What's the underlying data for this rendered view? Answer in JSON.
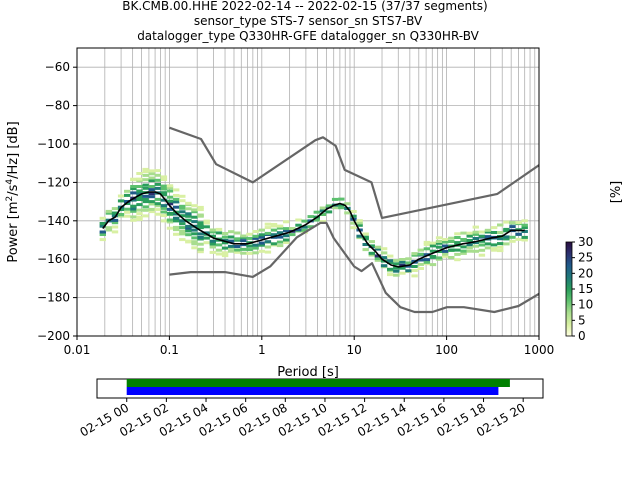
{
  "title_lines": [
    "BK.CMB.00.HHE   2022-02-14 -- 2022-02-15  (37/37 segments)",
    "sensor_type STS-7 sensor_sn STS7-BV",
    "datalogger_type Q330HR-GFE datalogger_sn Q330HR-BV"
  ],
  "chart_data": [
    {
      "type": "heatmap",
      "title": "BK.CMB.00.HHE   2022-02-14 -- 2022-02-15  (37/37 segments)",
      "xlabel": "Period [s]",
      "ylabel": "Power [m²/s⁴/Hz] [dB]",
      "xscale": "log",
      "xlim": [
        0.01,
        1000
      ],
      "ylim": [
        -200,
        -50
      ],
      "x_ticks": [
        "0.01",
        "0.1",
        "1",
        "10",
        "100",
        "1000"
      ],
      "y_ticks": [
        "−60",
        "−80",
        "−100",
        "−120",
        "−140",
        "−160",
        "−180",
        "−200"
      ],
      "grid": true,
      "colorbar": {
        "label": "[%]",
        "range": [
          0,
          30
        ],
        "ticks": [
          "0",
          "5",
          "10",
          "15",
          "20",
          "25",
          "30"
        ],
        "colors": [
          "#ffffe0",
          "#d9f0a3",
          "#a8dd8e",
          "#5cc06e",
          "#2a9d5c",
          "#1f7a78",
          "#205a8a",
          "#2c2f6e",
          "#2a0f3f"
        ]
      },
      "series": [
        {
          "name": "",
          "role": "mean",
          "color": "#000000",
          "x": [
            0.019,
            0.022,
            0.026,
            0.03,
            0.036,
            0.042,
            0.05,
            0.06,
            0.07,
            0.08,
            0.09,
            0.1,
            0.12,
            0.15,
            0.2,
            0.3,
            0.5,
            0.7,
            1,
            1.4,
            2,
            3,
            4,
            5,
            6,
            7,
            8,
            9,
            10,
            12,
            14,
            17,
            20,
            25,
            30,
            40,
            50,
            70,
            100,
            150,
            200,
            300,
            400,
            500,
            700
          ],
          "y": [
            -144,
            -140,
            -138,
            -133,
            -130,
            -128,
            -126,
            -125,
            -125,
            -126,
            -129,
            -132,
            -136,
            -140,
            -144,
            -149,
            -152,
            -152,
            -150,
            -148,
            -146,
            -142,
            -138,
            -134,
            -132,
            -131,
            -132,
            -135,
            -140,
            -147,
            -152,
            -156,
            -160,
            -163,
            -164,
            -163,
            -160,
            -157,
            -154,
            -152,
            -151,
            -149,
            -148,
            -145,
            -145
          ]
        },
        {
          "name": "",
          "role": "noise-model-high",
          "color": "#666666",
          "x": [
            0.1,
            0.22,
            0.32,
            0.8,
            3.8,
            4.6,
            6.3,
            7.9,
            15.4,
            20,
            354.8,
            1000
          ],
          "y": [
            -91.5,
            -97.4,
            -110.5,
            -120,
            -98,
            -96.5,
            -101,
            -113.5,
            -120,
            -138.5,
            -126,
            -111
          ]
        },
        {
          "name": "",
          "role": "noise-model-low",
          "color": "#666666",
          "x": [
            0.1,
            0.17,
            0.4,
            0.8,
            1.24,
            2.4,
            4.3,
            5,
            6,
            10,
            12,
            15.6,
            21.9,
            31.6,
            45,
            70,
            101,
            154,
            328,
            600,
            1000
          ],
          "y": [
            -168,
            -166.7,
            -166.7,
            -169.2,
            -163.7,
            -148.6,
            -141.1,
            -141.1,
            -149,
            -163.8,
            -166.2,
            -162.1,
            -177.5,
            -185,
            -187.5,
            -187.5,
            -185,
            -185,
            -187.5,
            -184.4,
            -178
          ]
        }
      ]
    },
    {
      "type": "timeline",
      "x_ticks": [
        "02-15 00",
        "02-15 02",
        "02-15 04",
        "02-15 06",
        "02-15 08",
        "02-15 10",
        "02-15 12",
        "02-15 14",
        "02-15 16",
        "02-15 18",
        "02-15 20"
      ],
      "xlim": [
        "02-14 22:30",
        "02-15 21:00"
      ],
      "bars": [
        {
          "name": "",
          "color": "#008000",
          "start": "02-15 00:00",
          "end": "02-15 19:20"
        },
        {
          "name": "",
          "color": "#0000ff",
          "start": "02-15 00:00",
          "end": "02-15 18:45"
        }
      ]
    }
  ]
}
